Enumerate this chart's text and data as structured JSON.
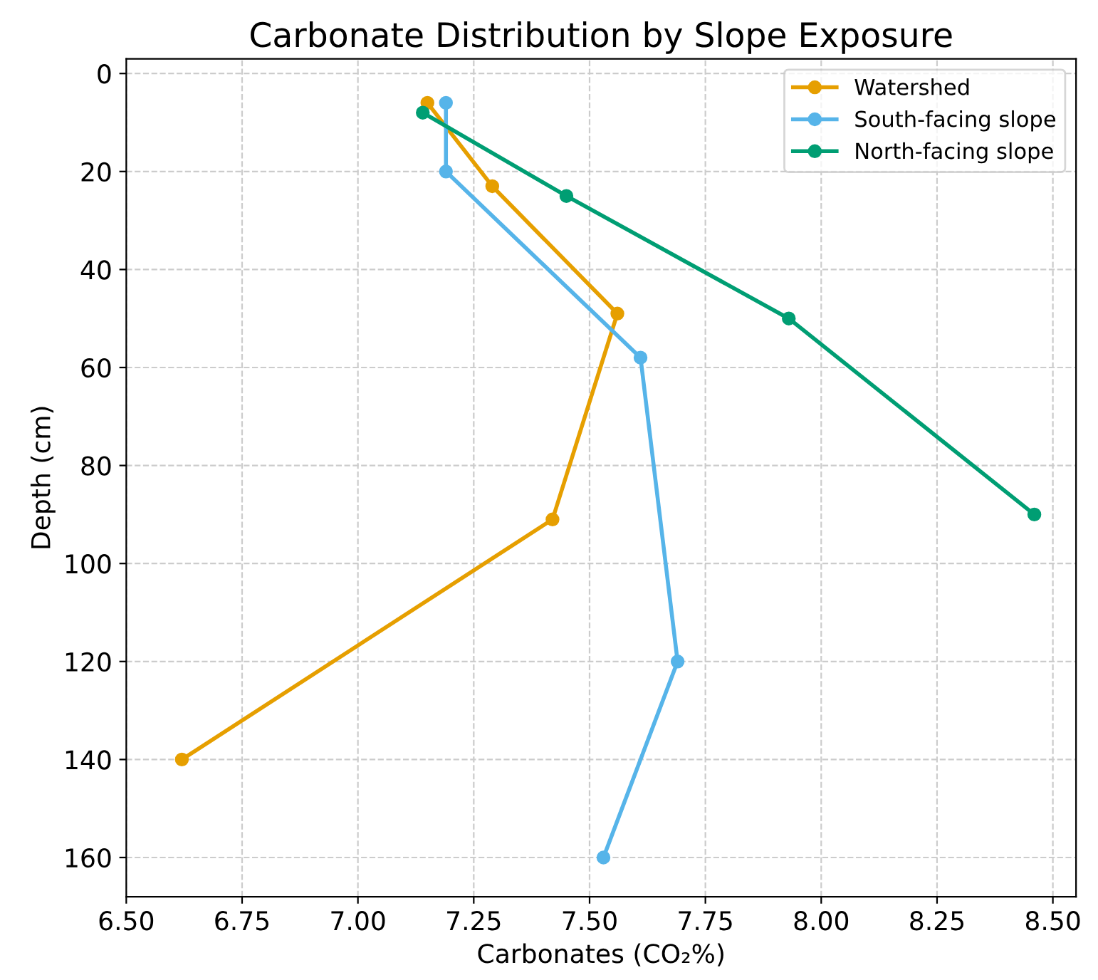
{
  "chart_data": {
    "type": "line",
    "title": "Carbonate Distribution by Slope Exposure",
    "xlabel": "Carbonates (CO₂%)",
    "ylabel": "Depth (cm)",
    "series": [
      {
        "name": "Watershed",
        "color": "#e69f00",
        "x": [
          7.15,
          7.29,
          7.56,
          7.42,
          6.62
        ],
        "values": [
          6,
          23,
          49,
          91,
          140
        ]
      },
      {
        "name": "South-facing slope",
        "color": "#56b4e9",
        "x": [
          7.19,
          7.19,
          7.61,
          7.69,
          7.53
        ],
        "values": [
          6,
          20,
          58,
          120,
          160
        ]
      },
      {
        "name": "North-facing slope",
        "color": "#009e73",
        "x": [
          7.14,
          7.45,
          7.93,
          8.46
        ],
        "values": [
          8,
          25,
          50,
          90
        ]
      }
    ],
    "xlim": [
      6.5,
      8.55
    ],
    "xticks": [
      {
        "value": 6.5,
        "label": "6.50"
      },
      6.75,
      {
        "value": 7.0,
        "label": "7.00"
      },
      7.25,
      {
        "value": 7.5,
        "label": "7.50"
      },
      7.75,
      {
        "value": 8.0,
        "label": "8.00"
      },
      8.25,
      {
        "value": 8.5,
        "label": "8.50"
      }
    ],
    "ylim": [
      168,
      -3
    ],
    "yticks": [
      0,
      20,
      40,
      60,
      80,
      100,
      120,
      140,
      160
    ],
    "grid": true,
    "legend": "top right",
    "marker": "circle",
    "line_style": "solid"
  }
}
